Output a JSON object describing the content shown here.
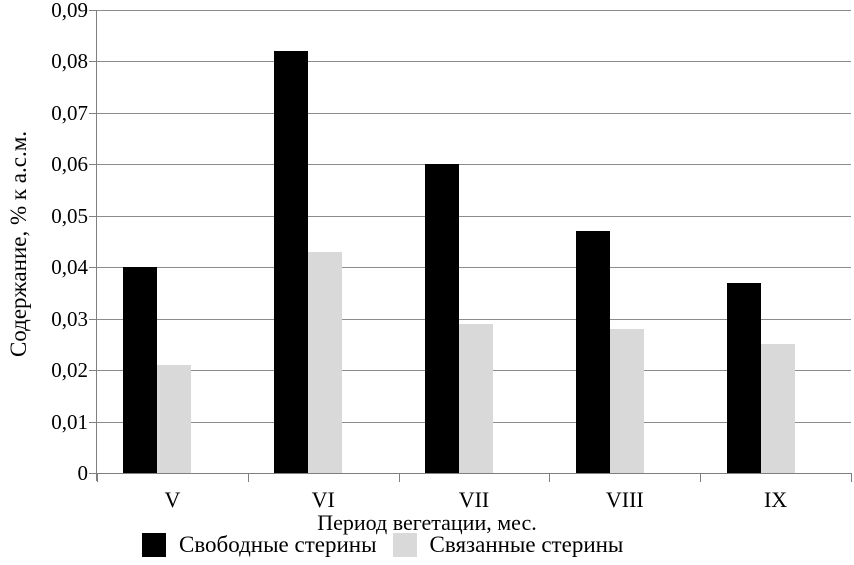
{
  "colors": {
    "series_free": "#000000",
    "series_bound": "#d9d9d9",
    "gridline": "#8c8c8c",
    "axis": "#7f7f7f",
    "text": "#000000",
    "background": "#ffffff"
  },
  "chart_data": {
    "type": "bar",
    "title": "",
    "categories": [
      "V",
      "VI",
      "VII",
      "VIII",
      "IX"
    ],
    "series": [
      {
        "name": "Свободные стерины",
        "color": "#000000",
        "values": [
          0.04,
          0.082,
          0.06,
          0.047,
          0.037
        ]
      },
      {
        "name": "Связанные стерины",
        "color": "#d9d9d9",
        "values": [
          0.021,
          0.043,
          0.029,
          0.028,
          0.025
        ]
      }
    ],
    "xlabel": "Период вегетации, мес.",
    "ylabel": "Содержание, % к а.с.м.",
    "ylim": [
      0,
      0.09
    ],
    "y_ticks": [
      {
        "value": 0,
        "label": "0"
      },
      {
        "value": 0.01,
        "label": "0,01"
      },
      {
        "value": 0.02,
        "label": "0,02"
      },
      {
        "value": 0.03,
        "label": "0,03"
      },
      {
        "value": 0.04,
        "label": "0,04"
      },
      {
        "value": 0.05,
        "label": "0,05"
      },
      {
        "value": 0.06,
        "label": "0,06"
      },
      {
        "value": 0.07,
        "label": "0,07"
      },
      {
        "value": 0.08,
        "label": "0,08"
      },
      {
        "value": 0.09,
        "label": "0,09"
      }
    ],
    "grid": "horizontal",
    "legend_position": "bottom"
  }
}
